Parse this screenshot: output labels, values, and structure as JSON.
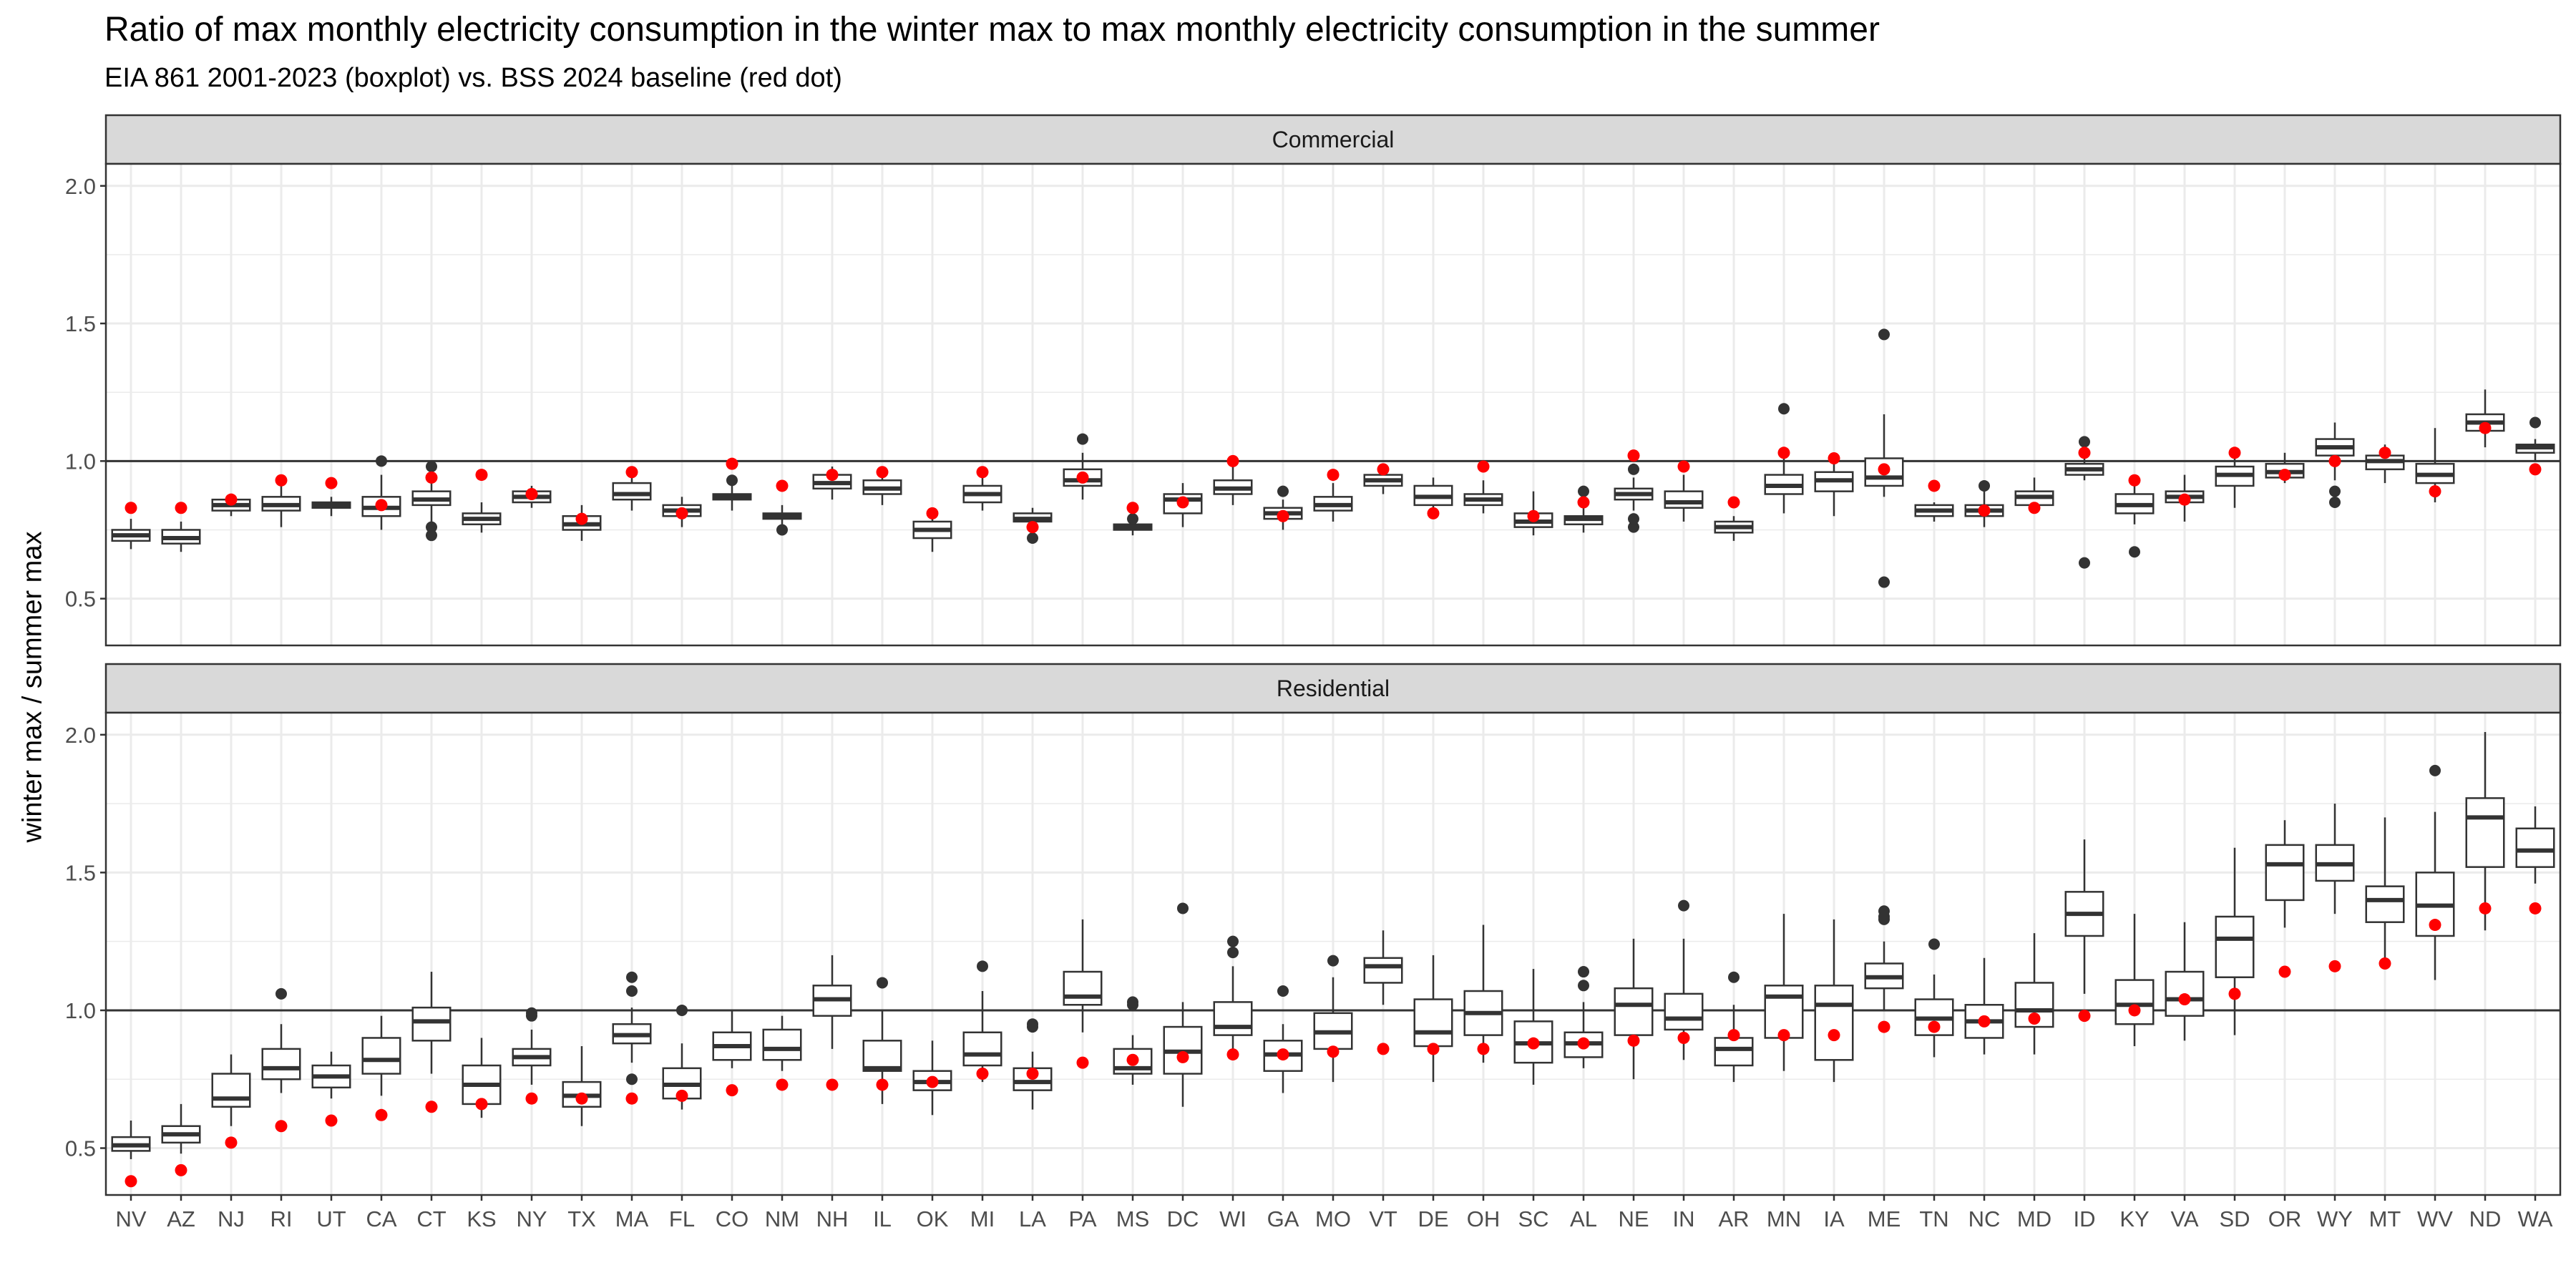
{
  "chart_data": {
    "type": "boxplot",
    "title": "Ratio of max monthly electricity consumption in the winter max to max monthly electricity consumption in the summer",
    "subtitle": "EIA 861 2001-2023 (boxplot) vs. BSS 2024 baseline (red dot)",
    "ylabel": "winter max / summer max",
    "xlabel": "",
    "ylim": [
      0.33,
      2.08
    ],
    "yticks": [
      "0.5",
      "1.0",
      "1.5",
      "2.0"
    ],
    "reference_line": 1.0,
    "grid": true,
    "colors": {
      "box": "#333333",
      "dot": "#ff0000",
      "strip": "#d9d9d9",
      "panel_border": "#333333",
      "grid": "#ebebeb"
    },
    "categories": [
      "NV",
      "AZ",
      "NJ",
      "RI",
      "UT",
      "CA",
      "CT",
      "KS",
      "NY",
      "TX",
      "MA",
      "FL",
      "CO",
      "NM",
      "NH",
      "IL",
      "OK",
      "MI",
      "LA",
      "PA",
      "MS",
      "DC",
      "WI",
      "GA",
      "MO",
      "VT",
      "DE",
      "OH",
      "SC",
      "AL",
      "NE",
      "IN",
      "AR",
      "MN",
      "IA",
      "ME",
      "TN",
      "NC",
      "MD",
      "ID",
      "KY",
      "VA",
      "SD",
      "OR",
      "WY",
      "MT",
      "WV",
      "ND",
      "WA"
    ],
    "panels": [
      {
        "name": "Commercial",
        "boxes": [
          [
            0.68,
            0.71,
            0.73,
            0.75,
            0.79
          ],
          [
            0.67,
            0.7,
            0.72,
            0.75,
            0.78
          ],
          [
            0.8,
            0.82,
            0.84,
            0.86,
            0.88
          ],
          [
            0.76,
            0.82,
            0.84,
            0.87,
            0.91
          ],
          [
            0.8,
            0.83,
            0.84,
            0.85,
            0.87
          ],
          [
            0.75,
            0.8,
            0.83,
            0.87,
            0.95
          ],
          [
            0.78,
            0.84,
            0.86,
            0.89,
            0.95
          ],
          [
            0.74,
            0.77,
            0.79,
            0.81,
            0.85
          ],
          [
            0.83,
            0.85,
            0.87,
            0.89,
            0.91
          ],
          [
            0.71,
            0.75,
            0.77,
            0.8,
            0.84
          ],
          [
            0.82,
            0.86,
            0.88,
            0.92,
            0.96
          ],
          [
            0.76,
            0.8,
            0.82,
            0.84,
            0.87
          ],
          [
            0.82,
            0.86,
            0.87,
            0.88,
            0.91
          ],
          [
            0.77,
            0.79,
            0.8,
            0.81,
            0.84
          ],
          [
            0.86,
            0.9,
            0.92,
            0.95,
            0.98
          ],
          [
            0.84,
            0.88,
            0.9,
            0.93,
            0.97
          ],
          [
            0.67,
            0.72,
            0.75,
            0.78,
            0.82
          ],
          [
            0.82,
            0.85,
            0.88,
            0.91,
            0.96
          ],
          [
            0.74,
            0.78,
            0.79,
            0.81,
            0.83
          ],
          [
            0.86,
            0.91,
            0.93,
            0.97,
            1.03
          ],
          [
            0.73,
            0.75,
            0.76,
            0.77,
            0.79
          ],
          [
            0.76,
            0.81,
            0.86,
            0.88,
            0.92
          ],
          [
            0.84,
            0.88,
            0.9,
            0.93,
            0.98
          ],
          [
            0.75,
            0.79,
            0.81,
            0.83,
            0.86
          ],
          [
            0.78,
            0.82,
            0.84,
            0.87,
            0.92
          ],
          [
            0.88,
            0.91,
            0.93,
            0.95,
            0.98
          ],
          [
            0.79,
            0.84,
            0.87,
            0.91,
            0.94
          ],
          [
            0.81,
            0.84,
            0.86,
            0.88,
            0.93
          ],
          [
            0.73,
            0.76,
            0.78,
            0.81,
            0.89
          ],
          [
            0.74,
            0.77,
            0.79,
            0.8,
            0.84
          ],
          [
            0.82,
            0.86,
            0.88,
            0.9,
            0.94
          ],
          [
            0.78,
            0.83,
            0.85,
            0.89,
            0.95
          ],
          [
            0.71,
            0.74,
            0.76,
            0.78,
            0.8
          ],
          [
            0.81,
            0.88,
            0.91,
            0.95,
            1.01
          ],
          [
            0.8,
            0.89,
            0.93,
            0.96,
            1.02
          ],
          [
            0.87,
            0.91,
            0.94,
            1.01,
            1.17
          ],
          [
            0.78,
            0.8,
            0.82,
            0.84,
            0.85
          ],
          [
            0.76,
            0.8,
            0.82,
            0.84,
            0.89
          ],
          [
            0.81,
            0.84,
            0.87,
            0.89,
            0.94
          ],
          [
            0.93,
            0.95,
            0.97,
            0.99,
            1.03
          ],
          [
            0.77,
            0.81,
            0.84,
            0.88,
            0.94
          ],
          [
            0.78,
            0.85,
            0.87,
            0.89,
            0.95
          ],
          [
            0.83,
            0.91,
            0.95,
            0.98,
            1.05
          ],
          [
            0.92,
            0.94,
            0.96,
            0.99,
            1.03
          ],
          [
            0.93,
            1.02,
            1.05,
            1.08,
            1.14
          ],
          [
            0.92,
            0.97,
            1.0,
            1.02,
            1.06
          ],
          [
            0.85,
            0.92,
            0.95,
            0.99,
            1.12
          ],
          [
            1.05,
            1.11,
            1.14,
            1.17,
            1.26
          ],
          [
            1.0,
            1.03,
            1.05,
            1.06,
            1.08
          ]
        ],
        "outliers": [
          [],
          [],
          [],
          [],
          [],
          [
            1.0
          ],
          [
            0.73,
            0.76,
            0.98
          ],
          [],
          [],
          [],
          [],
          [],
          [
            0.93
          ],
          [
            0.75
          ],
          [],
          [],
          [],
          [],
          [
            0.72
          ],
          [
            1.08
          ],
          [
            0.79
          ],
          [],
          [],
          [
            0.89
          ],
          [],
          [],
          [],
          [],
          [],
          [
            0.89
          ],
          [
            0.76,
            0.79,
            0.97
          ],
          [],
          [],
          [
            1.19
          ],
          [],
          [
            0.56,
            1.46
          ],
          [],
          [
            0.91
          ],
          [],
          [
            0.63,
            1.07
          ],
          [
            0.67
          ],
          [],
          [],
          [],
          [
            0.85,
            0.89
          ],
          [],
          [],
          [],
          [
            1.14
          ]
        ],
        "bss_baseline": [
          0.83,
          0.83,
          0.86,
          0.93,
          0.92,
          0.84,
          0.94,
          0.95,
          0.88,
          0.79,
          0.96,
          0.81,
          0.99,
          0.91,
          0.95,
          0.96,
          0.81,
          0.96,
          0.76,
          0.94,
          0.83,
          0.85,
          1.0,
          0.8,
          0.95,
          0.97,
          0.81,
          0.98,
          0.8,
          0.85,
          1.02,
          0.98,
          0.85,
          1.03,
          1.01,
          0.97,
          0.91,
          0.82,
          0.83,
          1.03,
          0.93,
          0.86,
          1.03,
          0.95,
          1.0,
          1.03,
          0.89,
          1.12,
          0.97
        ]
      },
      {
        "name": "Residential",
        "boxes": [
          [
            0.46,
            0.49,
            0.51,
            0.54,
            0.6
          ],
          [
            0.48,
            0.52,
            0.55,
            0.58,
            0.66
          ],
          [
            0.58,
            0.65,
            0.68,
            0.77,
            0.84
          ],
          [
            0.7,
            0.75,
            0.79,
            0.86,
            0.95
          ],
          [
            0.68,
            0.72,
            0.76,
            0.8,
            0.85
          ],
          [
            0.69,
            0.77,
            0.82,
            0.9,
            0.98
          ],
          [
            0.77,
            0.89,
            0.96,
            1.01,
            1.14
          ],
          [
            0.61,
            0.66,
            0.73,
            0.8,
            0.9
          ],
          [
            0.73,
            0.8,
            0.83,
            0.86,
            0.93
          ],
          [
            0.58,
            0.65,
            0.69,
            0.74,
            0.87
          ],
          [
            0.81,
            0.88,
            0.91,
            0.95,
            1.01
          ],
          [
            0.64,
            0.68,
            0.73,
            0.79,
            0.88
          ],
          [
            0.79,
            0.82,
            0.87,
            0.92,
            1.0
          ],
          [
            0.78,
            0.82,
            0.86,
            0.93,
            0.98
          ],
          [
            0.86,
            0.98,
            1.04,
            1.09,
            1.2
          ],
          [
            0.66,
            0.78,
            0.79,
            0.89,
            1.0
          ],
          [
            0.62,
            0.71,
            0.74,
            0.78,
            0.89
          ],
          [
            0.74,
            0.8,
            0.84,
            0.92,
            1.07
          ],
          [
            0.64,
            0.71,
            0.74,
            0.79,
            0.85
          ],
          [
            0.92,
            1.02,
            1.05,
            1.14,
            1.33
          ],
          [
            0.73,
            0.77,
            0.79,
            0.86,
            0.91
          ],
          [
            0.65,
            0.77,
            0.85,
            0.94,
            1.03
          ],
          [
            0.83,
            0.91,
            0.94,
            1.03,
            1.16
          ],
          [
            0.7,
            0.78,
            0.84,
            0.89,
            0.95
          ],
          [
            0.74,
            0.86,
            0.92,
            0.99,
            1.12
          ],
          [
            1.02,
            1.1,
            1.16,
            1.19,
            1.29
          ],
          [
            0.74,
            0.87,
            0.92,
            1.04,
            1.2
          ],
          [
            0.81,
            0.91,
            0.99,
            1.07,
            1.31
          ],
          [
            0.73,
            0.81,
            0.88,
            0.96,
            1.15
          ],
          [
            0.79,
            0.83,
            0.88,
            0.92,
            1.03
          ],
          [
            0.75,
            0.91,
            1.02,
            1.08,
            1.26
          ],
          [
            0.82,
            0.93,
            0.97,
            1.06,
            1.26
          ],
          [
            0.74,
            0.8,
            0.86,
            0.9,
            1.02
          ],
          [
            0.78,
            0.9,
            1.05,
            1.09,
            1.35
          ],
          [
            0.74,
            0.82,
            1.02,
            1.09,
            1.33
          ],
          [
            1.0,
            1.08,
            1.12,
            1.17,
            1.25
          ],
          [
            0.83,
            0.91,
            0.97,
            1.04,
            1.13
          ],
          [
            0.84,
            0.9,
            0.96,
            1.02,
            1.19
          ],
          [
            0.84,
            0.94,
            1.0,
            1.1,
            1.28
          ],
          [
            1.06,
            1.27,
            1.35,
            1.43,
            1.62
          ],
          [
            0.87,
            0.95,
            1.02,
            1.11,
            1.35
          ],
          [
            0.89,
            0.98,
            1.04,
            1.14,
            1.32
          ],
          [
            0.91,
            1.12,
            1.26,
            1.34,
            1.59
          ],
          [
            1.3,
            1.4,
            1.53,
            1.6,
            1.69
          ],
          [
            1.35,
            1.47,
            1.53,
            1.6,
            1.75
          ],
          [
            1.18,
            1.32,
            1.4,
            1.45,
            1.7
          ],
          [
            1.11,
            1.27,
            1.38,
            1.5,
            1.72
          ],
          [
            1.29,
            1.52,
            1.7,
            1.77,
            2.01
          ],
          [
            1.46,
            1.52,
            1.58,
            1.66,
            1.74
          ]
        ],
        "outliers": [
          [],
          [],
          [],
          [
            1.06
          ],
          [],
          [],
          [],
          [],
          [
            0.98,
            0.99
          ],
          [],
          [
            0.75,
            1.07,
            1.12
          ],
          [
            1.0
          ],
          [],
          [],
          [],
          [
            1.1
          ],
          [],
          [
            1.16
          ],
          [
            0.94,
            0.95
          ],
          [],
          [
            1.02,
            1.03
          ],
          [
            1.37
          ],
          [
            1.21,
            1.25
          ],
          [
            1.07
          ],
          [
            1.18
          ],
          [],
          [],
          [],
          [],
          [
            1.09,
            1.14
          ],
          [],
          [
            1.38
          ],
          [
            1.12
          ],
          [],
          [],
          [
            1.33,
            1.34,
            1.36
          ],
          [
            1.24
          ],
          [],
          [],
          [],
          [],
          [],
          [],
          [],
          [],
          [],
          [
            1.87
          ],
          [],
          []
        ],
        "bss_baseline": [
          0.38,
          0.42,
          0.52,
          0.58,
          0.6,
          0.62,
          0.65,
          0.66,
          0.68,
          0.68,
          0.68,
          0.69,
          0.71,
          0.73,
          0.73,
          0.73,
          0.74,
          0.77,
          0.77,
          0.81,
          0.82,
          0.83,
          0.84,
          0.84,
          0.85,
          0.86,
          0.86,
          0.86,
          0.88,
          0.88,
          0.89,
          0.9,
          0.91,
          0.91,
          0.91,
          0.94,
          0.94,
          0.96,
          0.97,
          0.98,
          1.0,
          1.04,
          1.06,
          1.14,
          1.16,
          1.17,
          1.31,
          1.37,
          1.37
        ]
      }
    ]
  }
}
